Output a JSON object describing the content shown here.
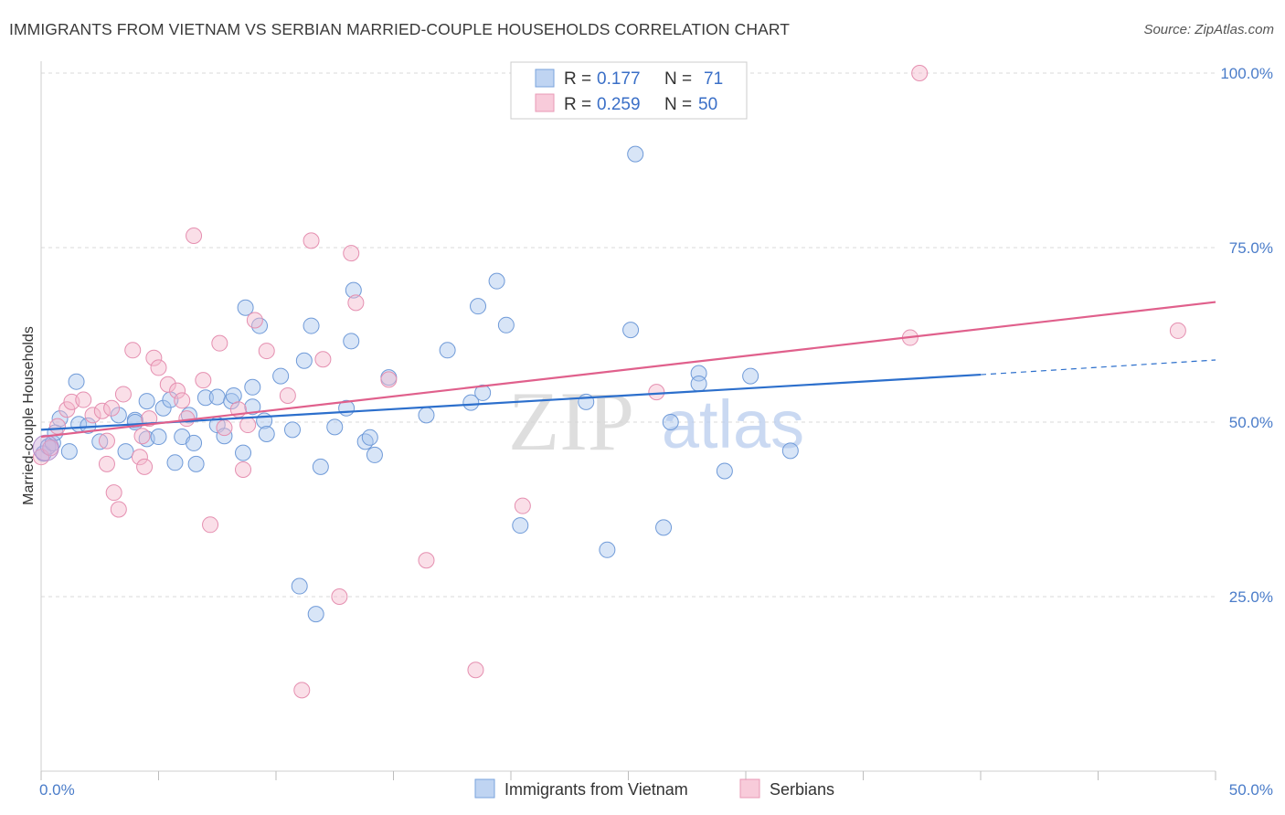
{
  "title": "IMMIGRANTS FROM VIETNAM VS SERBIAN MARRIED-COUPLE HOUSEHOLDS CORRELATION CHART",
  "source": "Source: ZipAtlas.com",
  "watermark": {
    "zip": "ZIP",
    "atlas": "atlas"
  },
  "colors": {
    "blue": "#2c6fcc",
    "pink": "#e0608c",
    "blue_fill": "#a9c6ee",
    "pink_fill": "#f5b9cd"
  },
  "chart_data": {
    "type": "scatter",
    "title": "IMMIGRANTS FROM VIETNAM VS SERBIAN MARRIED-COUPLE HOUSEHOLDS CORRELATION CHART",
    "xlabel": "",
    "ylabel": "Married-couple Households",
    "xlim": [
      0,
      50
    ],
    "ylim": [
      0,
      102
    ],
    "x_tick_labels": [
      {
        "value": 0,
        "label": "0.0%"
      },
      {
        "value": 50,
        "label": "50.0%"
      }
    ],
    "y_tick_labels": [
      {
        "value": 25,
        "label": "25.0%"
      },
      {
        "value": 50,
        "label": "50.0%"
      },
      {
        "value": 75,
        "label": "75.0%"
      },
      {
        "value": 100,
        "label": "100.0%"
      }
    ],
    "legend": {
      "rows": [
        {
          "r_label": "R =",
          "r_value": "0.177",
          "n_label": "N =",
          "n_value": "71"
        },
        {
          "r_label": "R =",
          "r_value": "0.259",
          "n_label": "N =",
          "n_value": "50"
        }
      ]
    },
    "series": [
      {
        "name": "Immigrants from Vietnam",
        "color": "#2c6fcc",
        "trend": {
          "x0": 0,
          "y0": 48.9,
          "x1": 40,
          "y1": 56.8,
          "dash_to_x": 50,
          "dash_to_y": 58.9
        },
        "points": [
          [
            0.1,
            45.5
          ],
          [
            0.3,
            46.5
          ],
          [
            0.5,
            47.0
          ],
          [
            0.6,
            48.5
          ],
          [
            0.8,
            50.5
          ],
          [
            1.2,
            45.8
          ],
          [
            1.5,
            55.8
          ],
          [
            1.6,
            49.7
          ],
          [
            2.0,
            49.5
          ],
          [
            2.5,
            47.2
          ],
          [
            3.3,
            51.0
          ],
          [
            3.6,
            45.8
          ],
          [
            4.0,
            50.3
          ],
          [
            4.5,
            47.6
          ],
          [
            4.5,
            53.0
          ],
          [
            5.0,
            47.9
          ],
          [
            5.2,
            52.0
          ],
          [
            5.5,
            53.2
          ],
          [
            5.7,
            44.2
          ],
          [
            6.0,
            47.9
          ],
          [
            6.3,
            51.0
          ],
          [
            6.5,
            47.0
          ],
          [
            6.6,
            44.0
          ],
          [
            7.0,
            53.5
          ],
          [
            7.5,
            49.6
          ],
          [
            7.5,
            53.6
          ],
          [
            7.8,
            48.0
          ],
          [
            8.1,
            53.0
          ],
          [
            8.2,
            53.8
          ],
          [
            8.6,
            45.6
          ],
          [
            8.7,
            66.4
          ],
          [
            9.0,
            52.2
          ],
          [
            9.3,
            63.8
          ],
          [
            9.5,
            50.2
          ],
          [
            9.6,
            48.3
          ],
          [
            10.2,
            56.6
          ],
          [
            10.7,
            48.9
          ],
          [
            11.0,
            26.5
          ],
          [
            11.2,
            58.8
          ],
          [
            11.5,
            63.8
          ],
          [
            11.7,
            22.5
          ],
          [
            11.9,
            43.6
          ],
          [
            12.5,
            49.3
          ],
          [
            13.2,
            61.6
          ],
          [
            13.3,
            68.9
          ],
          [
            13.8,
            47.2
          ],
          [
            14.0,
            47.8
          ],
          [
            14.2,
            45.3
          ],
          [
            14.8,
            56.4
          ],
          [
            16.4,
            51.0
          ],
          [
            17.3,
            60.3
          ],
          [
            18.3,
            52.8
          ],
          [
            18.6,
            66.6
          ],
          [
            18.8,
            54.2
          ],
          [
            19.4,
            70.2
          ],
          [
            19.8,
            63.9
          ],
          [
            20.4,
            35.2
          ],
          [
            23.2,
            52.9
          ],
          [
            24.1,
            31.7
          ],
          [
            25.1,
            63.2
          ],
          [
            25.3,
            88.4
          ],
          [
            26.5,
            34.9
          ],
          [
            26.8,
            50.0
          ],
          [
            28.0,
            57.0
          ],
          [
            28.0,
            55.5
          ],
          [
            29.1,
            43.0
          ],
          [
            30.2,
            56.6
          ],
          [
            31.9,
            45.9
          ],
          [
            4.0,
            50.0
          ],
          [
            13.0,
            52.0
          ],
          [
            9.0,
            55.0
          ]
        ]
      },
      {
        "name": "Serbians",
        "color": "#e0608c",
        "trend": {
          "x0": 0,
          "y0": 47.9,
          "x1": 50,
          "y1": 67.2
        },
        "points": [
          [
            0.0,
            45.0
          ],
          [
            0.4,
            46.3
          ],
          [
            0.7,
            49.4
          ],
          [
            1.1,
            51.8
          ],
          [
            1.3,
            52.9
          ],
          [
            1.8,
            53.2
          ],
          [
            2.2,
            51.0
          ],
          [
            2.6,
            51.6
          ],
          [
            2.8,
            47.3
          ],
          [
            2.8,
            44.0
          ],
          [
            3.1,
            39.9
          ],
          [
            3.3,
            37.5
          ],
          [
            3.5,
            54.0
          ],
          [
            3.9,
            60.3
          ],
          [
            4.2,
            45.0
          ],
          [
            4.4,
            43.6
          ],
          [
            4.6,
            50.5
          ],
          [
            4.8,
            59.2
          ],
          [
            5.0,
            57.8
          ],
          [
            5.4,
            55.4
          ],
          [
            5.8,
            54.5
          ],
          [
            6.0,
            53.1
          ],
          [
            6.2,
            50.5
          ],
          [
            6.5,
            76.7
          ],
          [
            6.9,
            56.0
          ],
          [
            7.2,
            35.3
          ],
          [
            7.6,
            61.3
          ],
          [
            7.8,
            49.2
          ],
          [
            8.4,
            51.8
          ],
          [
            8.6,
            43.2
          ],
          [
            8.8,
            49.6
          ],
          [
            9.1,
            64.6
          ],
          [
            9.6,
            60.2
          ],
          [
            10.5,
            53.8
          ],
          [
            11.5,
            76.0
          ],
          [
            12.0,
            59.0
          ],
          [
            12.7,
            25.0
          ],
          [
            13.2,
            74.2
          ],
          [
            13.4,
            67.1
          ],
          [
            14.8,
            56.1
          ],
          [
            16.4,
            30.2
          ],
          [
            18.5,
            14.5
          ],
          [
            20.5,
            38.0
          ],
          [
            26.2,
            54.3
          ],
          [
            37.0,
            62.1
          ],
          [
            37.4,
            100.0
          ],
          [
            48.4,
            63.1
          ],
          [
            11.1,
            11.6
          ],
          [
            4.3,
            48.0
          ],
          [
            3.0,
            52.0
          ]
        ]
      }
    ]
  }
}
